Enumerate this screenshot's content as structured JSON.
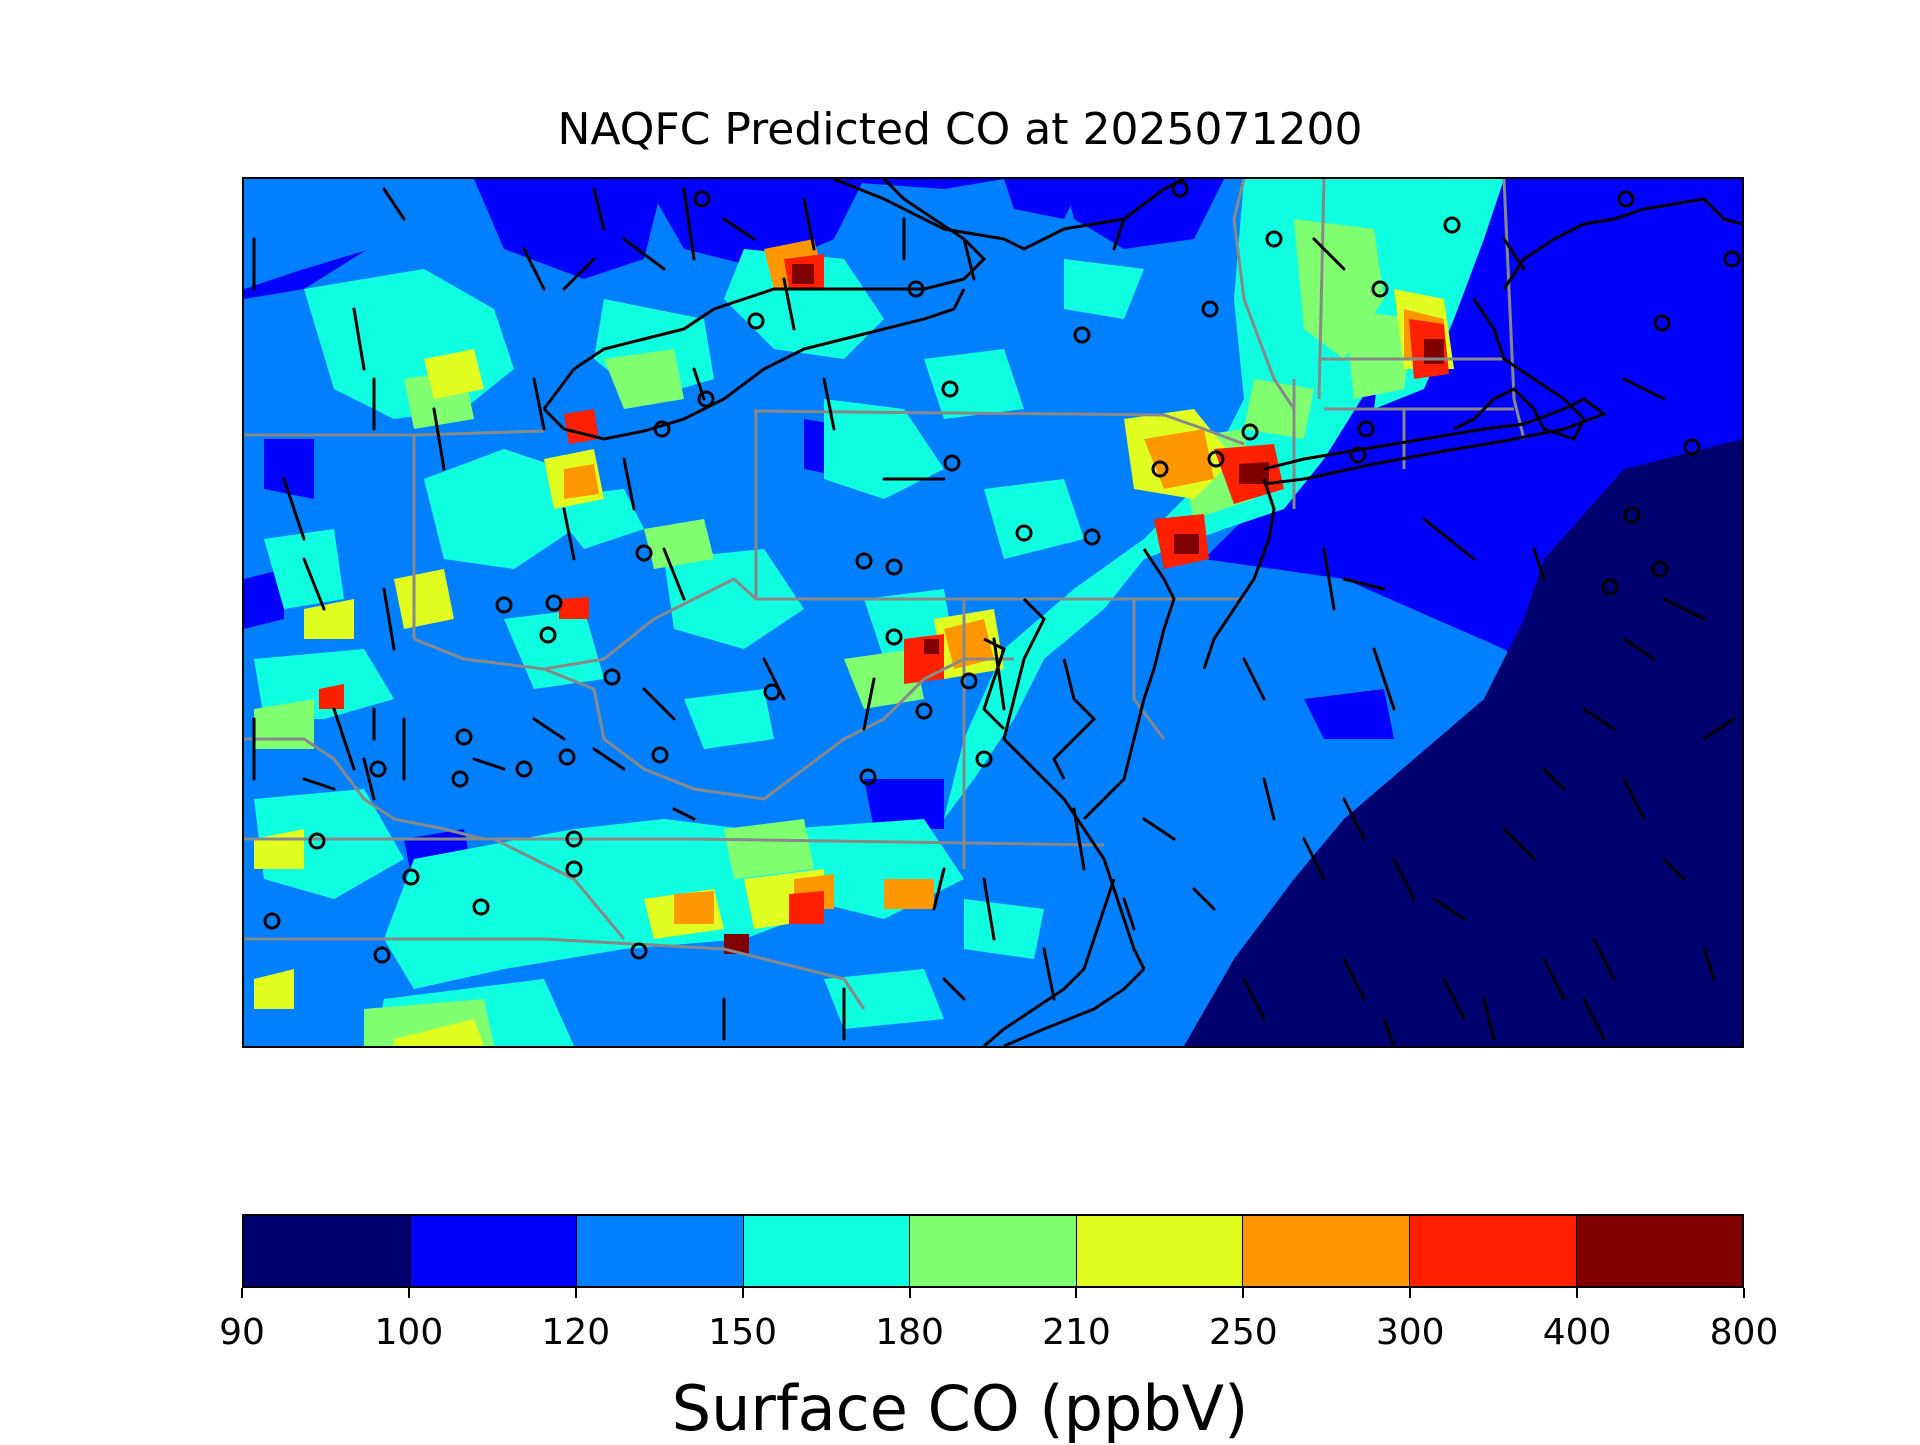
{
  "title": "NAQFC Predicted CO at 2025071200",
  "colorbar": {
    "label": "Surface CO (ppbV)",
    "ticks": [
      "90",
      "100",
      "120",
      "150",
      "180",
      "210",
      "250",
      "300",
      "400",
      "800"
    ],
    "colors": [
      "#00006E",
      "#0000FF",
      "#0080FF",
      "#10FFE0",
      "#80FF70",
      "#E0FF20",
      "#FF9800",
      "#FF2000",
      "#800000"
    ]
  },
  "map": {
    "background_level_color": "#0000FF",
    "coastline_color": "#000000",
    "state_border_color": "#888888",
    "wind_barb_color": "#000000",
    "station_marker": "open-circle"
  }
}
